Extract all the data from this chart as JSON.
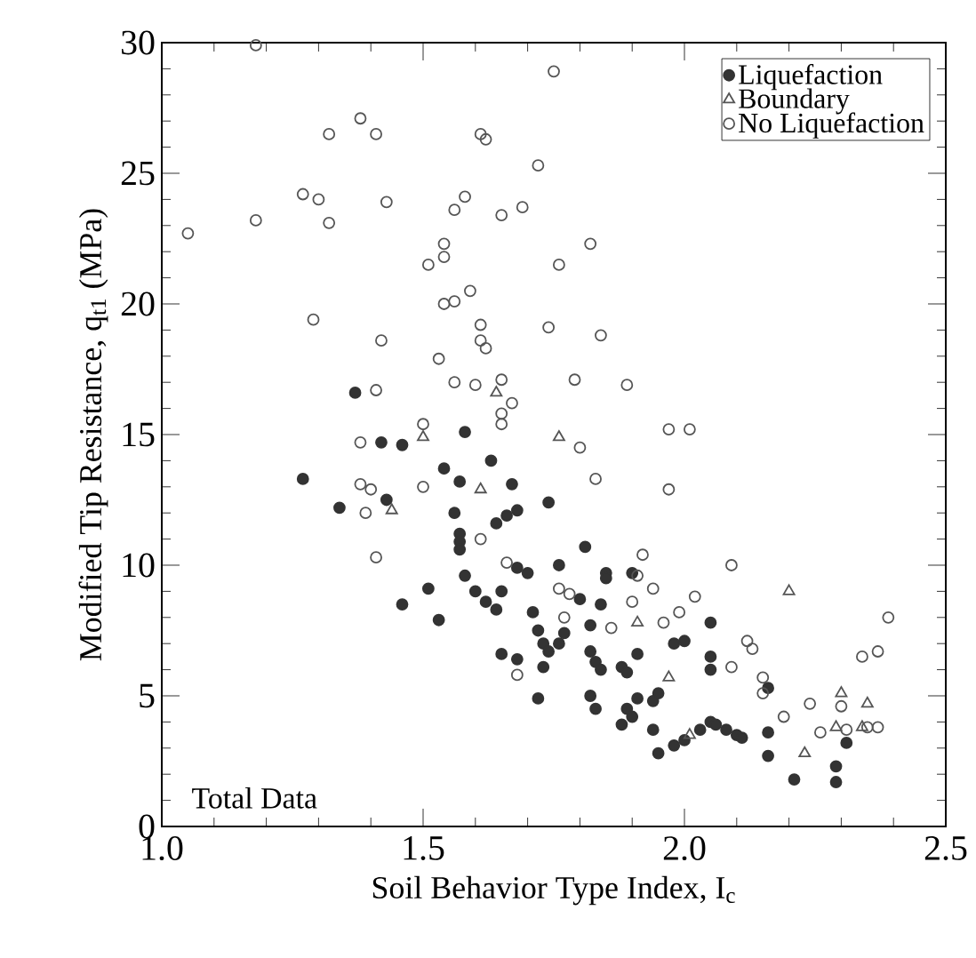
{
  "chart_data": {
    "type": "scatter",
    "xlabel": "Soil Behavior Type Index, I$_{c}$",
    "ylabel": "Modified Tip Resistance, q$_{t1}$ (MPa)",
    "annotations": [
      "Total Data"
    ],
    "xlim": [
      1.0,
      2.5
    ],
    "ylim": [
      0,
      30
    ],
    "xticks": [
      {
        "value": 1.0,
        "label": "1.0"
      },
      {
        "value": 1.5,
        "label": "1.5"
      },
      {
        "value": 2.0,
        "label": "2.0"
      },
      {
        "value": 2.5,
        "label": "2.5"
      }
    ],
    "yticks": [
      0,
      5,
      10,
      15,
      20,
      25,
      30
    ],
    "grid": false,
    "legend": "top right",
    "series": [
      {
        "name": "Liquefaction",
        "color": "#333333",
        "marker": "circle",
        "x": [
          1.37,
          1.58,
          1.42,
          1.46,
          1.27,
          1.63,
          1.54,
          1.57,
          1.67,
          1.43,
          1.34,
          1.74,
          1.56,
          1.64,
          1.66,
          1.68,
          1.57,
          1.57,
          1.57,
          1.68,
          1.7,
          1.76,
          1.58,
          1.51,
          1.6,
          1.65,
          1.46,
          1.62,
          1.64,
          1.71,
          1.53,
          1.72,
          1.73,
          1.74,
          1.76,
          1.77,
          1.65,
          1.68,
          1.73,
          1.72,
          1.81,
          1.85,
          1.85,
          1.9,
          1.8,
          1.84,
          1.82,
          2.05,
          1.98,
          2.0,
          1.91,
          1.82,
          1.83,
          1.84,
          1.88,
          1.89,
          2.05,
          2.05,
          2.16,
          1.95,
          1.94,
          1.91,
          1.82,
          1.83,
          1.89,
          1.9,
          1.88,
          1.94,
          1.95,
          1.98,
          2.0,
          2.03,
          2.05,
          2.06,
          2.08,
          2.1,
          2.11,
          2.16,
          2.16,
          2.21,
          2.31,
          2.29,
          2.29
        ],
        "values": [
          16.6,
          15.1,
          14.7,
          14.6,
          13.3,
          14.0,
          13.7,
          13.2,
          13.1,
          12.5,
          12.2,
          12.4,
          12.0,
          11.6,
          11.9,
          12.1,
          11.2,
          10.9,
          10.6,
          9.9,
          9.7,
          10.0,
          9.6,
          9.1,
          9.0,
          9.0,
          8.5,
          8.6,
          8.3,
          8.2,
          7.9,
          7.5,
          7.0,
          6.7,
          7.0,
          7.4,
          6.6,
          6.4,
          6.1,
          4.9,
          10.7,
          9.7,
          9.5,
          9.7,
          8.7,
          8.5,
          7.7,
          7.8,
          7.0,
          7.1,
          6.6,
          6.7,
          6.3,
          6.0,
          6.1,
          5.9,
          6.5,
          6.0,
          5.3,
          5.1,
          4.8,
          4.9,
          5.0,
          4.5,
          4.5,
          4.2,
          3.9,
          3.7,
          2.8,
          3.1,
          3.3,
          3.7,
          4.0,
          3.9,
          3.7,
          3.5,
          3.4,
          3.6,
          2.7,
          1.8,
          3.2,
          2.3,
          1.7
        ]
      },
      {
        "name": "Boundary",
        "color": "#555555",
        "marker": "triangle",
        "x": [
          1.64,
          1.5,
          1.76,
          1.61,
          1.44,
          2.2,
          1.91,
          1.97,
          2.01,
          2.23,
          2.3,
          2.29,
          2.35,
          2.34
        ],
        "values": [
          16.6,
          14.9,
          14.9,
          12.9,
          12.1,
          9.0,
          7.8,
          5.7,
          3.5,
          2.8,
          5.1,
          3.8,
          4.7,
          3.8
        ]
      },
      {
        "name": "No Liquefaction",
        "color": "#555555",
        "marker": "circle",
        "x": [
          1.18,
          1.75,
          1.38,
          1.32,
          1.41,
          1.61,
          1.62,
          1.72,
          1.27,
          1.3,
          1.43,
          1.58,
          1.56,
          1.69,
          1.65,
          1.18,
          1.32,
          1.05,
          1.54,
          1.54,
          1.51,
          1.76,
          1.59,
          1.54,
          1.56,
          1.29,
          1.74,
          1.61,
          1.61,
          1.62,
          1.42,
          1.53,
          1.56,
          1.6,
          1.65,
          1.41,
          1.65,
          1.67,
          1.65,
          1.5,
          1.38,
          1.82,
          1.84,
          1.79,
          1.89,
          1.97,
          2.01,
          1.8,
          1.5,
          1.38,
          1.4,
          1.39,
          1.61,
          1.41,
          1.66,
          1.76,
          1.77,
          1.83,
          1.97,
          1.92,
          2.09,
          2.39,
          1.91,
          1.94,
          2.02,
          1.78,
          1.9,
          1.99,
          1.86,
          1.96,
          2.12,
          2.13,
          2.09,
          2.15,
          2.15,
          1.68,
          2.19,
          2.24,
          2.26,
          2.3,
          2.31,
          2.35,
          2.37,
          2.34,
          2.37
        ],
        "values": [
          29.9,
          28.9,
          27.1,
          26.5,
          26.5,
          26.5,
          26.3,
          25.3,
          24.2,
          24.0,
          23.9,
          24.1,
          23.6,
          23.7,
          23.4,
          23.2,
          23.1,
          22.7,
          22.3,
          21.8,
          21.5,
          21.5,
          20.5,
          20.0,
          20.1,
          19.4,
          19.1,
          19.2,
          18.6,
          18.3,
          18.6,
          17.9,
          17.0,
          16.9,
          17.1,
          16.7,
          15.8,
          16.2,
          15.4,
          15.4,
          14.7,
          22.3,
          18.8,
          17.1,
          16.9,
          15.2,
          15.2,
          14.5,
          13.0,
          13.1,
          12.9,
          12.0,
          11.0,
          10.3,
          10.1,
          9.1,
          8.0,
          13.3,
          12.9,
          10.4,
          10.0,
          8.0,
          9.6,
          9.1,
          8.8,
          8.9,
          8.6,
          8.2,
          7.6,
          7.8,
          7.1,
          6.8,
          6.1,
          5.7,
          5.1,
          5.8,
          4.2,
          4.7,
          3.6,
          4.6,
          3.7,
          3.8,
          3.8,
          6.5,
          6.7
        ]
      }
    ]
  }
}
